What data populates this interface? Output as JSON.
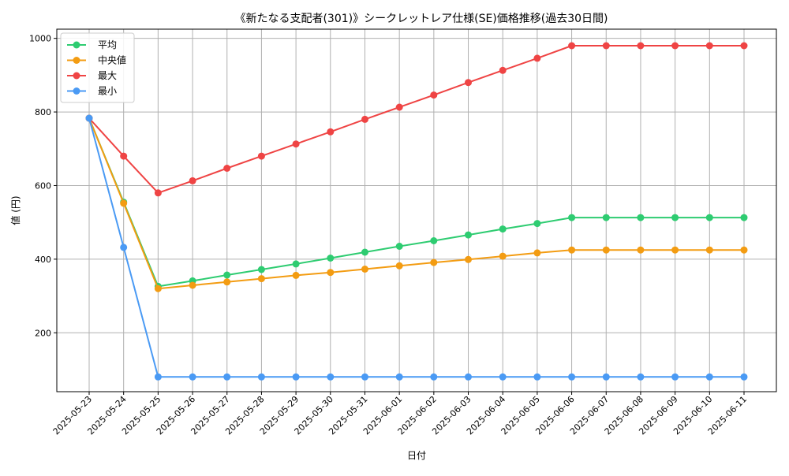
{
  "chart_data": {
    "type": "line",
    "title": "《新たなる支配者(301)》シークレットレア仕様(SE)価格推移(過去30日間)",
    "xlabel": "日付",
    "ylabel": "値 (円)",
    "ylim": [
      40,
      1025
    ],
    "yticks": [
      200,
      400,
      600,
      800,
      1000
    ],
    "grid": true,
    "legend_position": "top-left",
    "categories": [
      "2025-05-23",
      "2025-05-24",
      "2025-05-25",
      "2025-05-26",
      "2025-05-27",
      "2025-05-28",
      "2025-05-29",
      "2025-05-30",
      "2025-05-31",
      "2025-06-01",
      "2025-06-02",
      "2025-06-03",
      "2025-06-04",
      "2025-06-05",
      "2025-06-06",
      "2025-06-07",
      "2025-06-08",
      "2025-06-09",
      "2025-06-10",
      "2025-06-11"
    ],
    "series": [
      {
        "name": "平均",
        "color": "#2ecc71",
        "values": [
          783,
          555,
          326,
          341,
          357,
          372,
          387,
          403,
          419,
          435,
          450,
          466,
          482,
          497,
          513,
          513,
          513,
          513,
          513,
          513
        ]
      },
      {
        "name": "中央値",
        "color": "#f39c12",
        "values": [
          783,
          552,
          320,
          329,
          338,
          347,
          356,
          364,
          373,
          382,
          391,
          399,
          408,
          417,
          425,
          425,
          425,
          425,
          425,
          425
        ]
      },
      {
        "name": "最大",
        "color": "#ef4444",
        "values": [
          783,
          680,
          580,
          613,
          647,
          680,
          713,
          746,
          780,
          813,
          846,
          880,
          913,
          946,
          980,
          980,
          980,
          980,
          980,
          980
        ]
      },
      {
        "name": "最小",
        "color": "#4a9af4",
        "values": [
          783,
          432,
          80,
          80,
          80,
          80,
          80,
          80,
          80,
          80,
          80,
          80,
          80,
          80,
          80,
          80,
          80,
          80,
          80,
          80
        ]
      }
    ]
  }
}
